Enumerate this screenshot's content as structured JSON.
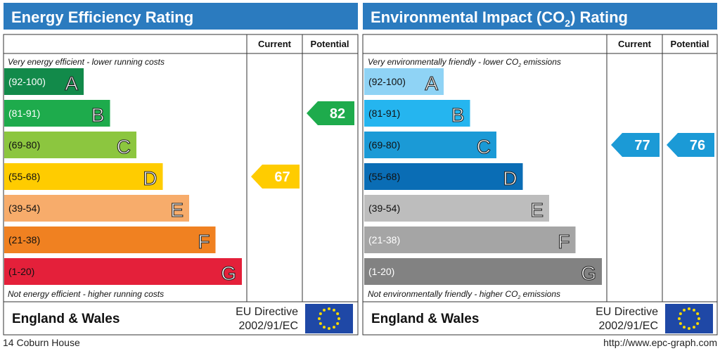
{
  "chart_data": [
    {
      "type": "bar",
      "title": "Energy Efficiency Rating",
      "columns": {
        "current": "Current",
        "potential": "Potential"
      },
      "top_note": "Very energy efficient - lower running costs",
      "bottom_note": "Not energy efficient - higher running costs",
      "bands": [
        {
          "range": "(92-100)",
          "letter": "A",
          "color": "#128a4a",
          "label_color": "#ffffff"
        },
        {
          "range": "(81-91)",
          "letter": "B",
          "color": "#1eab4c",
          "label_color": "#ffffff"
        },
        {
          "range": "(69-80)",
          "letter": "C",
          "color": "#8cc63f",
          "label_color": "#111111"
        },
        {
          "range": "(55-68)",
          "letter": "D",
          "color": "#ffcc00",
          "label_color": "#111111"
        },
        {
          "range": "(39-54)",
          "letter": "E",
          "color": "#f7ac6b",
          "label_color": "#111111"
        },
        {
          "range": "(21-38)",
          "letter": "F",
          "color": "#f08121",
          "label_color": "#111111"
        },
        {
          "range": "(1-20)",
          "letter": "G",
          "color": "#e4203a",
          "label_color": "#111111"
        }
      ],
      "current": {
        "value": 67,
        "band": "D",
        "color": "#ffcc00"
      },
      "potential": {
        "value": 82,
        "band": "B",
        "color": "#1eab4c"
      },
      "footer": {
        "region": "England & Wales",
        "directive_line1": "EU Directive",
        "directive_line2": "2002/91/EC"
      }
    },
    {
      "type": "bar",
      "title": "Environmental Impact (CO",
      "title_sub": "2",
      "title_end": ") Rating",
      "columns": {
        "current": "Current",
        "potential": "Potential"
      },
      "top_note": "Very environmentally friendly - lower CO",
      "top_note_sub": "2",
      "top_note_end": " emissions",
      "bottom_note": "Not environmentally friendly - higher CO",
      "bottom_note_sub": "2",
      "bottom_note_end": " emissions",
      "bands": [
        {
          "range": "(92-100)",
          "letter": "A",
          "color": "#8fd3f5",
          "label_color": "#111111"
        },
        {
          "range": "(81-91)",
          "letter": "B",
          "color": "#25b5ef",
          "label_color": "#111111"
        },
        {
          "range": "(69-80)",
          "letter": "C",
          "color": "#1b9ad6",
          "label_color": "#111111"
        },
        {
          "range": "(55-68)",
          "letter": "D",
          "color": "#0a6db5",
          "label_color": "#111111"
        },
        {
          "range": "(39-54)",
          "letter": "E",
          "color": "#bdbdbd",
          "label_color": "#111111"
        },
        {
          "range": "(21-38)",
          "letter": "F",
          "color": "#a5a5a5",
          "label_color": "#ffffff"
        },
        {
          "range": "(1-20)",
          "letter": "G",
          "color": "#828282",
          "label_color": "#ffffff"
        }
      ],
      "current": {
        "value": 77,
        "band": "C",
        "color": "#1b9ad6"
      },
      "potential": {
        "value": 76,
        "band": "C",
        "color": "#1b9ad6"
      },
      "footer": {
        "region": "England & Wales",
        "directive_line1": "EU Directive",
        "directive_line2": "2002/91/EC"
      }
    }
  ],
  "property": "14 Coburn House",
  "source_url": "http://www.epc-graph.com",
  "colors": {
    "header_blue": "#2b7bbf",
    "eu_flag_blue": "#1f48a6",
    "eu_star": "#f5d800"
  }
}
